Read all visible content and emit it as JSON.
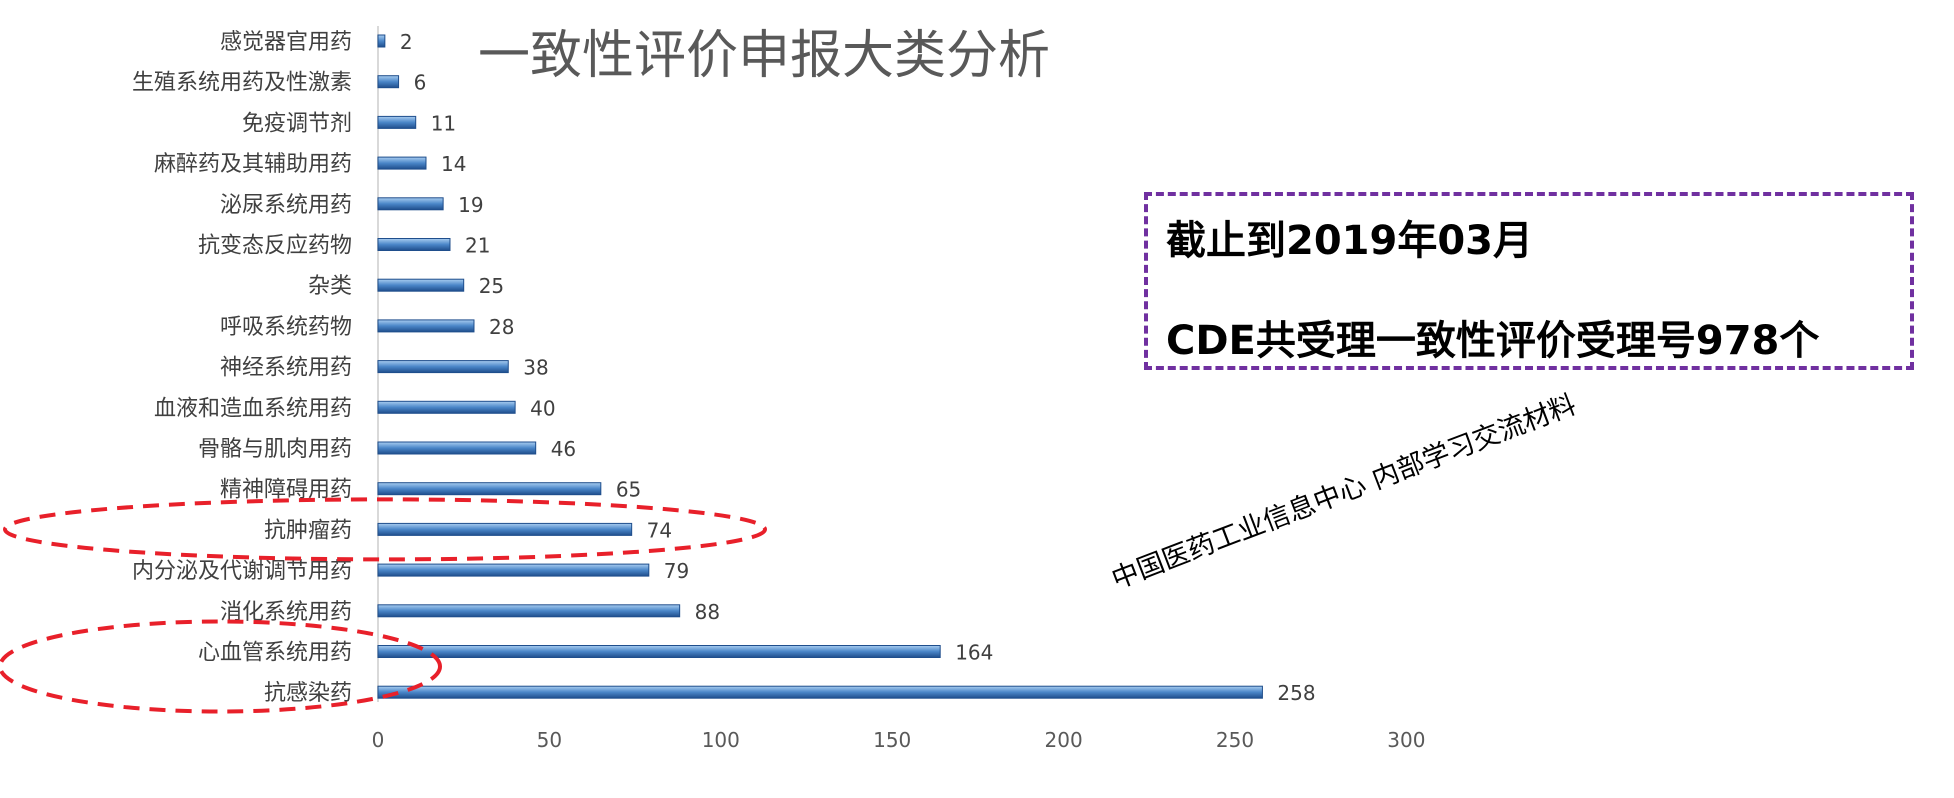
{
  "chart_data": {
    "type": "bar",
    "orientation": "horizontal",
    "title": "一致性评价申报大类分析",
    "categories": [
      "感觉器官用药",
      "生殖系统用药及性激素",
      "免疫调节剂",
      "麻醉药及其辅助用药",
      "泌尿系统用药",
      "抗变态反应药物",
      "杂类",
      "呼吸系统药物",
      "神经系统用药",
      "血液和造血系统用药",
      "骨骼与肌肉用药",
      "精神障碍用药",
      "抗肿瘤药",
      "内分泌及代谢调节用药",
      "消化系统用药",
      "心血管系统用药",
      "抗感染药"
    ],
    "values": [
      2,
      6,
      11,
      14,
      19,
      21,
      25,
      28,
      38,
      40,
      46,
      65,
      74,
      79,
      88,
      164,
      258
    ],
    "xlim": [
      0,
      300
    ],
    "xticks": [
      0,
      50,
      100,
      150,
      200,
      250,
      300
    ],
    "xlabel": "",
    "ylabel": "",
    "grid": false,
    "bar_color": "#4a86c8",
    "highlight_color": "#e8202a",
    "highlighted_categories": [
      "抗肿瘤药",
      "心血管系统用药"
    ]
  },
  "info_box": {
    "line1": "截止到2019年03月",
    "line2": "CDE共受理一致性评价受理号978个",
    "border_color": "#7030a0"
  },
  "watermark": "中国医药工业信息中心   内部学习交流材料"
}
